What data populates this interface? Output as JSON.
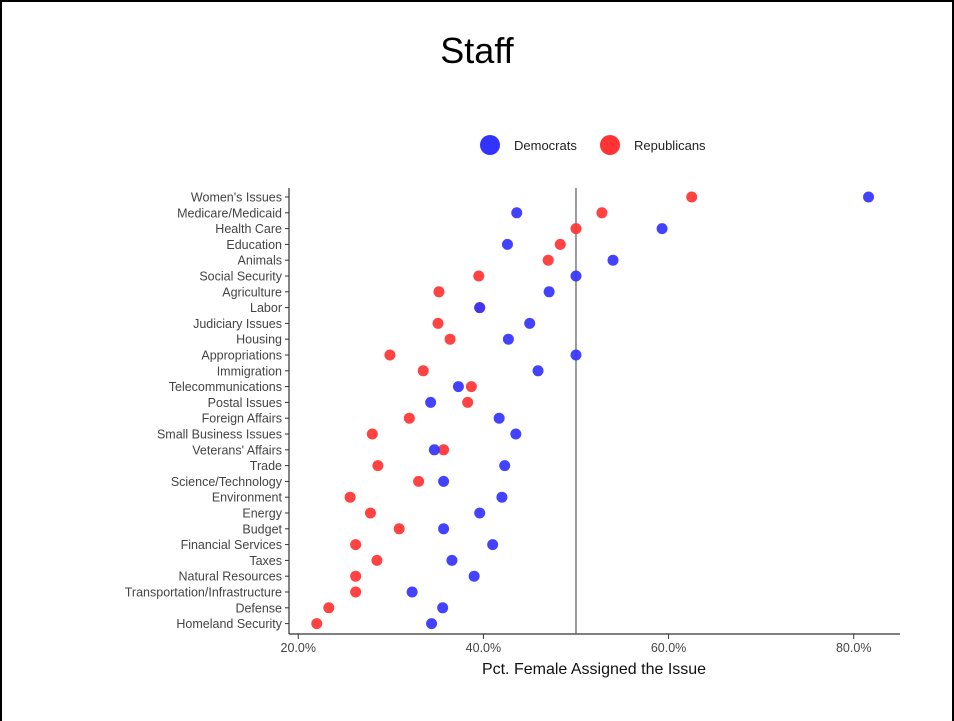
{
  "slide": {
    "title": "Staff"
  },
  "chart_data": {
    "type": "scatter",
    "title": "Staff",
    "xlabel": "Pct. Female Assigned the Issue",
    "ylabel": "",
    "xlim": [
      19.0,
      85.0
    ],
    "xticks": [
      20,
      40,
      60,
      80
    ],
    "xtick_labels": [
      "20.0%",
      "40.0%",
      "60.0%",
      "80.0%"
    ],
    "reference_line_x": 50,
    "legend": {
      "position": "top"
    },
    "colors": {
      "Democrats": "#3333ff",
      "Republicans": "#ff3333"
    },
    "categories": [
      "Women's Issues",
      "Medicare/Medicaid",
      "Health Care",
      "Education",
      "Animals",
      "Social Security",
      "Agriculture",
      "Labor",
      "Judiciary Issues",
      "Housing",
      "Appropriations",
      "Immigration",
      "Telecommunications",
      "Postal Issues",
      "Foreign Affairs",
      "Small Business Issues",
      "Veterans' Affairs",
      "Trade",
      "Science/Technology",
      "Environment",
      "Energy",
      "Budget",
      "Financial Services",
      "Taxes",
      "Natural Resources",
      "Transportation/Infrastructure",
      "Defense",
      "Homeland Security"
    ],
    "series": [
      {
        "name": "Democrats",
        "values": [
          81.6,
          43.6,
          59.3,
          42.6,
          54.0,
          50.0,
          47.1,
          39.6,
          45.0,
          42.7,
          50.0,
          45.9,
          37.3,
          34.3,
          41.7,
          43.5,
          34.7,
          42.3,
          35.7,
          42.0,
          39.6,
          35.7,
          41.0,
          36.6,
          39.0,
          32.3,
          35.6,
          34.4
        ]
      },
      {
        "name": "Republicans",
        "values": [
          62.5,
          52.8,
          50.0,
          48.3,
          47.0,
          39.5,
          35.2,
          39.6,
          35.1,
          36.4,
          29.9,
          33.5,
          38.7,
          38.3,
          32.0,
          28.0,
          35.7,
          28.6,
          33.0,
          25.6,
          27.8,
          30.9,
          26.2,
          28.5,
          26.2,
          26.2,
          23.3,
          22.0
        ]
      }
    ]
  }
}
